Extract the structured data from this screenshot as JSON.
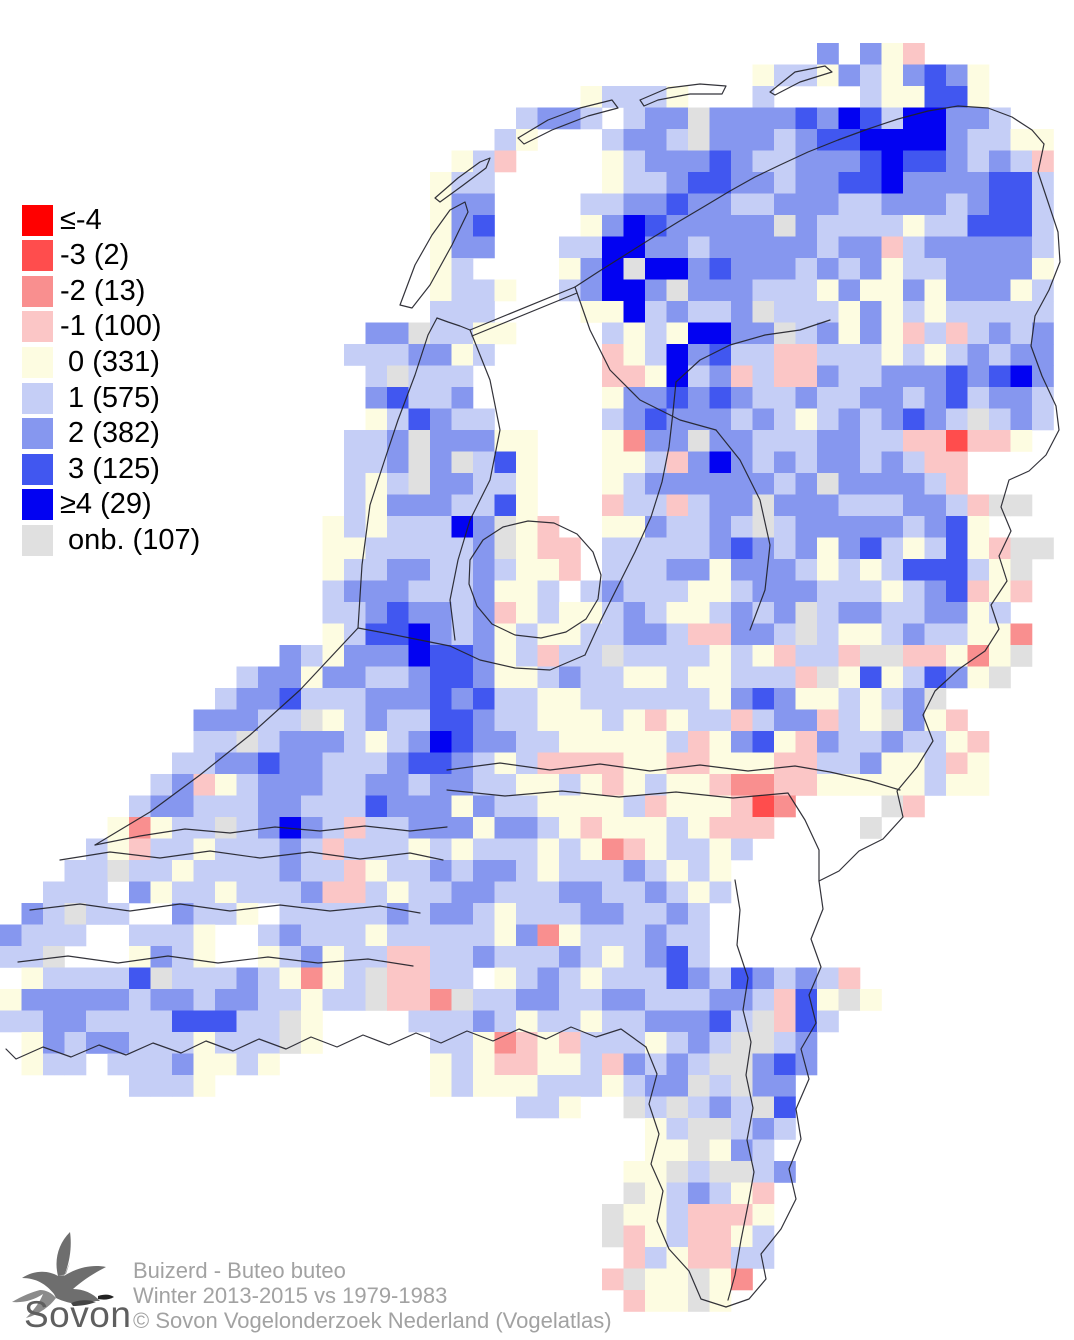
{
  "legend": {
    "items": [
      {
        "key": "R",
        "label": "≤-4",
        "color": "#FF0000"
      },
      {
        "key": "r",
        "label": "-3 (2)",
        "color": "#FF4D4D"
      },
      {
        "key": "s",
        "label": "-2 (13)",
        "color": "#F98F8F"
      },
      {
        "key": "p",
        "label": "-1 (100)",
        "color": "#FBC6C6"
      },
      {
        "key": "0",
        "label": " 0 (331)",
        "color": "#FDFCE1"
      },
      {
        "key": "a",
        "label": " 1 (575)",
        "color": "#C5CEF6"
      },
      {
        "key": "b",
        "label": " 2 (382)",
        "color": "#8697EF"
      },
      {
        "key": "c",
        "label": " 3 (125)",
        "color": "#4157F0"
      },
      {
        "key": "d",
        "label": "≥4 (29)",
        "color": "#0202F2"
      },
      {
        "key": "g",
        "label": " onb. (107)",
        "color": "#E0E0E0"
      }
    ]
  },
  "footer": {
    "species": "Buizerd - Buteo buteo",
    "period": "Winter 2013-2015 vs 1979-1983",
    "copyright": "© Sovon Vogelonderzoek Nederland (Vogelatlas)",
    "logo_text": "Sovon"
  },
  "map": {
    "cell_size": 21.5,
    "grid_cols": 50,
    "grid_rows": 61,
    "outline_color": "#22222a",
    "palette": {
      "R": "#FF0000",
      "r": "#FF4D4D",
      "s": "#F98F8F",
      "p": "#FBC6C6",
      "0": "#FDFCE1",
      "a": "#C5CEF6",
      "b": "#8697EF",
      "c": "#4157F0",
      "d": "#0202F2",
      "g": "#E0E0E0"
    },
    "rows": [
      "..................................................",
      "..................................................",
      "......................................b.b0p.......",
      "...................................0aa0ba0bcb0....",
      "...........................0aaa0...a....a00cc0....",
      "........................abba.abbgbbbbcbdcaddbba...",
      ".......................a0...abbagbbbabccddddbaa00.",
      ".....................0ap....0abbbcbaabbbcdccbabap.",
      "....................0aa.....0aabccbbabbccdbbbbcca.",
      "....................0bb....aabbcbbaabbbaabbbabcca.",
      "....................0bc....0bdcbbbbbgbaaaa0aaccca.",
      "....................0bb...aaddbbabbbbbabbpabbbbba.",
      "....................0a....0bdgddbcbbbabab0aabbbb0.",
      "....................0aa0..abddbgbbbaaa0b00b0bbb0a.",
      "....................aaa....00dabaabgaaa0b0a0aaaaa.",
      ".................bbgaa00....a0a0ddbbgab0b0papabab.",
      "................aaabb0a.....p0adbcaappaaa0a0ababb.",
      ".................agaaa......pp0dabpappbaabbbcbcdb.",
      ".................bcaab......0bbcbcbaabaabbabcabba.",
      ".................0acbaa.....abcbbbaba0ababcbagaba.",
      "................aabgbbb00...0sbbgbbaaabbaapprpp0..",
      "................aabgbgac0...00apbdbababbabapp.....",
      "................a0agbbaa0...0abbbbbbabgbbbbap.....",
      "................a0bbbaac0...paapabbgbbbaaabbapgg..",
      "...............0a0aaadbg0p..00baabagabbbbbabc0....",
      "...............00aaaaabg0pp.aaaaabcbab0bca0ac0pgg.",
      "...............0aabbaaba00p.aaabb0bbba0a0accca0g..",
      "...............abbbaaab00a.abaaa00abbbaaa0abcp0p..",
      "...............aabcbbabp0a00aba00ababgabbaabb0a...",
      "...............0accdbab0a00aabbappbbaga00abaa00s..",
      ".............ba0bbbdccb0apaagaaaa0a0paapggpp0s0g..",
      "...........abb0bbaabccb00abaa00a00aaapg0c0acb0g...",
      "..........abbcaaabbbcbcaa00aaaaaa0bcb00a0abg......",
      ".........bbbaag0abaaccbaa000a0p0aapabbpa0gb0p.....",
      ".........aagabbba0abdcbbaa00000ap0bc0pbaabaa0p....",
      "........aabbcbbaaabccba0apppp00pp000ppaab00ap0....",
      ".......abp0abbbaabbabbaa00a0p0a00psspp00000a00....",
      "......abbaaabbaaacbbb0baa0000ap000prs....gp.......",
      ".....0s0aagabdbapaabbb0bba0p000a0ppp....g.........",
      "....a0paa0aaabapaaa0a0aaa0a0sp0aa0a...............",
      "...aagaa0aaaabaap0aababba0aaaba0a0................",
      "..aaa.b0aa0aaabppa0aabbaaabbaaba0a................",
      ".bagaa..baa0.aaaaababba0aaabbaaba.................",
      "baaa..aaa0..abaaa0aaaaa0bs0aaabaa.................",
      "aag...0ba0..0ab0aappaabaaaba0abca.................",
      ".0aaaacgaaaba0s0agppaa.0aba0aaacbacbabap..........",
      "0bbbbbabbabbaa0aagppsgaabbaabbaaabbapc0g0.........",
      "aabbaaaacccaag0....aaaba0aa0aabbbcagpca...........",
      ".0babbaaa0aaag0.....aa0sp0paaa0abaggab............",
      ".0aa.aaab00a0.......0a0pp00apbabaggbcb............",
      "......aaa0..........0a000aaa0abbgagbb.............",
      "........................aa0..gagabagc.............",
      "..............................0aggaba.............",
      "..............................00g0ba..............",
      ".............................00gaggab.............",
      ".............................g0aba0p..............",
      "............................g00appp0..............",
      "............................gp0app0a..............",
      ".............................pa0ppaa..............",
      "............................pg00g0s...............",
      ".............................p00g0................"
    ]
  }
}
